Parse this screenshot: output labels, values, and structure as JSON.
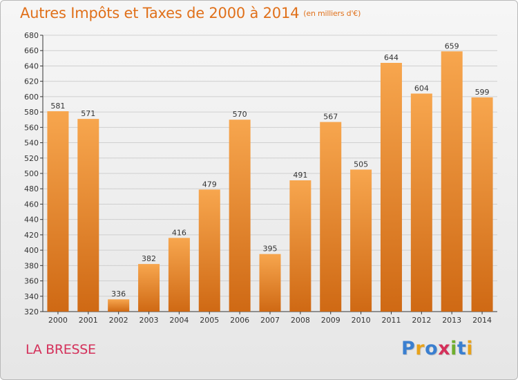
{
  "title": "Autres Impôts et Taxes de 2000 à 2014",
  "title_unit": "(en milliers d'€)",
  "commune": "LA BRESSE",
  "logo": {
    "text": "Proxiti",
    "letters": [
      {
        "ch": "P",
        "color": "#3a7fd0"
      },
      {
        "ch": "r",
        "color": "#e8a21a"
      },
      {
        "ch": "o",
        "color": "#3a7fd0"
      },
      {
        "ch": "x",
        "color": "#d4305a"
      },
      {
        "ch": "i",
        "color": "#6fae2e"
      },
      {
        "ch": "t",
        "color": "#3a7fd0"
      },
      {
        "ch": "i",
        "color": "#e8a21a"
      }
    ]
  },
  "colors": {
    "bar_light": "#f7a64e",
    "bar_dark": "#cf6914",
    "title": "#e0701a",
    "commune": "#d4305a",
    "grid": "#cfcfcf",
    "axis": "#333333"
  },
  "chart_data": {
    "type": "bar",
    "categories": [
      "2000",
      "2001",
      "2002",
      "2003",
      "2004",
      "2005",
      "2006",
      "2007",
      "2008",
      "2009",
      "2010",
      "2011",
      "2012",
      "2013",
      "2014"
    ],
    "values": [
      581,
      571,
      336,
      382,
      416,
      479,
      570,
      395,
      491,
      567,
      505,
      644,
      604,
      659,
      599
    ],
    "ylim": [
      320,
      680
    ],
    "yticks": [
      320,
      340,
      360,
      380,
      400,
      420,
      440,
      460,
      480,
      500,
      520,
      540,
      560,
      580,
      600,
      620,
      640,
      660,
      680
    ],
    "grid": true,
    "data_labels": true
  }
}
